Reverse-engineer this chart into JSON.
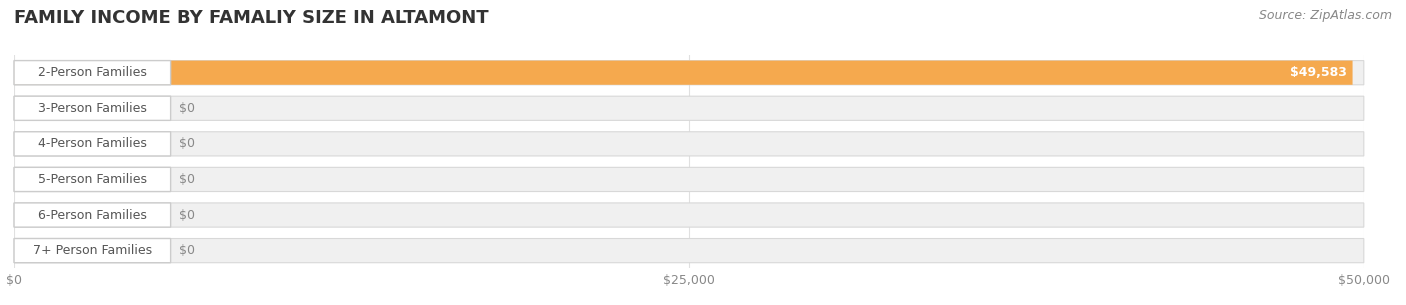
{
  "title": "FAMILY INCOME BY FAMALIY SIZE IN ALTAMONT",
  "source": "Source: ZipAtlas.com",
  "categories": [
    "2-Person Families",
    "3-Person Families",
    "4-Person Families",
    "5-Person Families",
    "6-Person Families",
    "7+ Person Families"
  ],
  "values": [
    49583,
    0,
    0,
    0,
    0,
    0
  ],
  "bar_colors": [
    "#f5a94e",
    "#f4a0a8",
    "#a8c4e0",
    "#c9a8d4",
    "#7ecec4",
    "#b8c4e8"
  ],
  "label_colors": [
    "#f5a94e",
    "#f4a0a8",
    "#a8c4e0",
    "#c9a8d4",
    "#7ecec4",
    "#b8c4e8"
  ],
  "xlim": [
    0,
    50000
  ],
  "xticks": [
    0,
    25000,
    50000
  ],
  "xtick_labels": [
    "$0",
    "$25,000",
    "$50,000"
  ],
  "background_color": "#ffffff",
  "bar_bg_color": "#f0f0f0",
  "title_fontsize": 13,
  "source_fontsize": 9,
  "label_fontsize": 9,
  "value_fontsize": 9,
  "grid_color": "#e0e0e0"
}
